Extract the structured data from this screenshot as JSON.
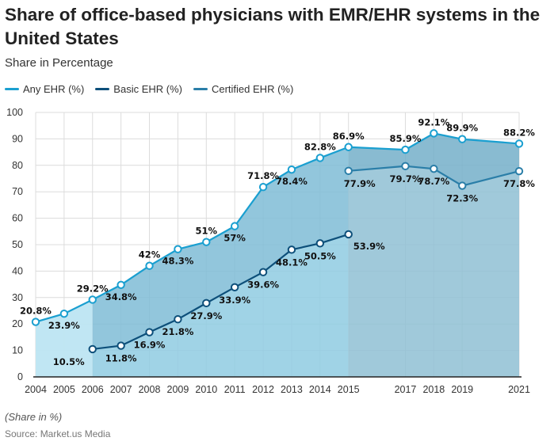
{
  "chart_data": {
    "type": "area",
    "title": "Share of office-based physicians with EMR/EHR systems in the United States",
    "subtitle": "Share in Percentage",
    "ylim": [
      0,
      100
    ],
    "yticks": [
      0,
      10,
      20,
      30,
      40,
      50,
      60,
      70,
      80,
      90,
      100
    ],
    "xticks": [
      2004,
      2005,
      2006,
      2007,
      2008,
      2009,
      2010,
      2011,
      2012,
      2013,
      2014,
      2015,
      2017,
      2018,
      2019,
      2021
    ],
    "grid": true,
    "legend_position": "top-left",
    "series": [
      {
        "name": "Any EHR (%)",
        "color": "#1a9fd0",
        "x": [
          2004,
          2005,
          2006,
          2007,
          2008,
          2009,
          2010,
          2011,
          2012,
          2013,
          2014,
          2015,
          2017,
          2018,
          2019,
          2021
        ],
        "values": [
          20.8,
          23.9,
          29.2,
          34.8,
          42,
          48.3,
          51,
          57,
          71.8,
          78.4,
          82.8,
          86.9,
          85.9,
          92.1,
          89.9,
          88.2
        ],
        "labels": [
          "20.8%",
          "23.9%",
          "29.2%",
          "34.8%",
          "42%",
          "48.3%",
          "51%",
          "57%",
          "71.8%",
          "78.4%",
          "82.8%",
          "86.9%",
          "85.9%",
          "92.1%",
          "89.9%",
          "88.2%"
        ]
      },
      {
        "name": "Basic EHR (%)",
        "color": "#0d4f7a",
        "x": [
          2006,
          2007,
          2008,
          2009,
          2010,
          2011,
          2012,
          2013,
          2014,
          2015
        ],
        "values": [
          10.5,
          11.8,
          16.9,
          21.8,
          27.9,
          33.9,
          39.6,
          48.1,
          50.5,
          53.9
        ],
        "labels": [
          "10.5%",
          "11.8%",
          "16.9%",
          "21.8%",
          "27.9%",
          "33.9%",
          "39.6%",
          "48.1%",
          "50.5%",
          "53.9%"
        ]
      },
      {
        "name": "Certified EHR (%)",
        "color": "#2a7ea8",
        "x": [
          2015,
          2017,
          2018,
          2019,
          2021
        ],
        "values": [
          77.9,
          79.7,
          78.7,
          72.3,
          77.8
        ],
        "labels": [
          "77.9%",
          "79.7%",
          "78.7%",
          "72.3%",
          "77.8%"
        ]
      }
    ]
  },
  "footer": {
    "note": "(Share in %)",
    "source": "Source: Market.us Media"
  }
}
